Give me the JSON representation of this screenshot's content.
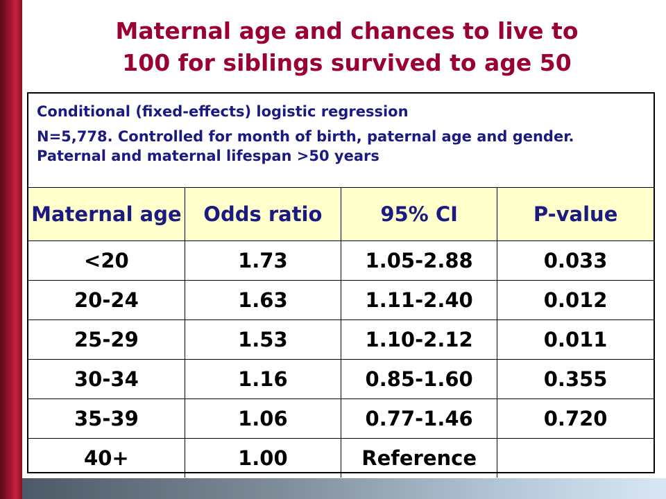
{
  "title": {
    "line1": "Maternal age and chances to live to",
    "line2": "100 for siblings survived to age 50"
  },
  "notes": {
    "line1": "Conditional (fixed-effects) logistic regression",
    "line2": "N=5,778.  Controlled for month of birth, paternal age and gender. Paternal and maternal lifespan >50 years"
  },
  "table": {
    "headers": [
      "Maternal age",
      "Odds ratio",
      "95% CI",
      "P-value"
    ],
    "rows": [
      [
        "<20",
        "1.73",
        "1.05-2.88",
        "0.033"
      ],
      [
        "20-24",
        "1.63",
        "1.11-2.40",
        "0.012"
      ],
      [
        "25-29",
        "1.53",
        "1.10-2.12",
        "0.011"
      ],
      [
        "30-34",
        "1.16",
        "0.85-1.60",
        "0.355"
      ],
      [
        "35-39",
        "1.06",
        "0.77-1.46",
        "0.720"
      ],
      [
        "40+",
        "1.00",
        "Reference",
        ""
      ]
    ]
  },
  "colors": {
    "title": "#990033",
    "notes_text": "#1a1a80",
    "header_bg": "#ffffcc",
    "left_bar": "#9e1430"
  }
}
